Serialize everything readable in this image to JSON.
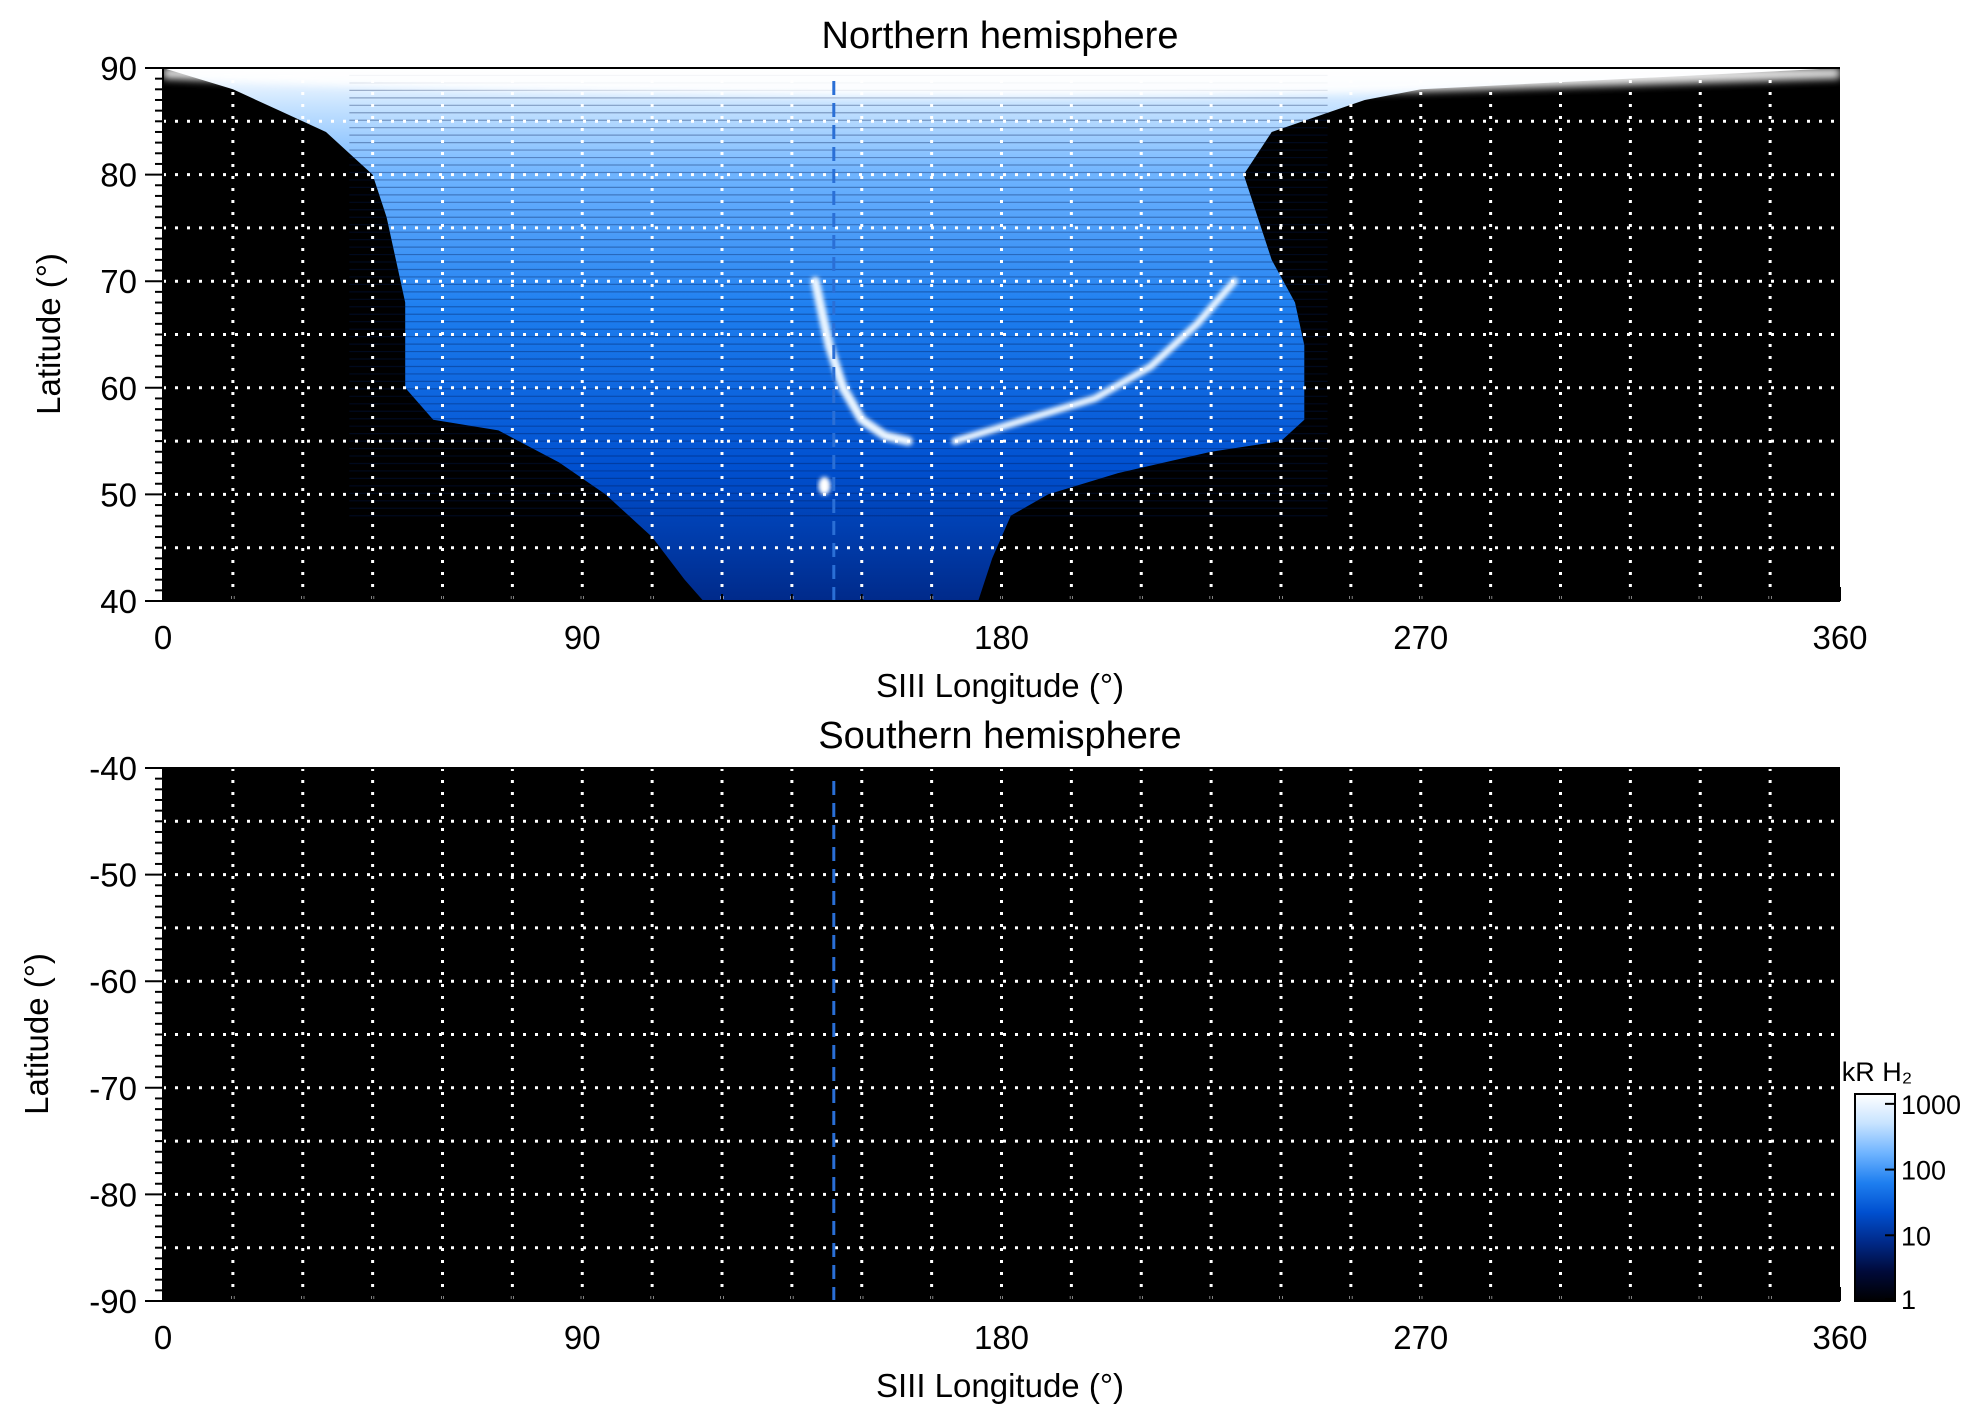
{
  "chart_data": [
    {
      "type": "heatmap",
      "title": "Northern hemisphere",
      "xlabel": "SIII Longitude (°)",
      "ylabel": "Latitude (°)",
      "xlim": [
        0,
        360
      ],
      "ylim": [
        40,
        90
      ],
      "xticks": [
        0,
        90,
        180,
        270,
        360
      ],
      "yticks": [
        40,
        50,
        60,
        70,
        80,
        90
      ],
      "x_grid_step": 15,
      "y_grid_step": 5,
      "grid": true,
      "reference_longitude": 144,
      "reference_line_color": "#2a6fd6",
      "emission": {
        "lower_boundary": [
          [
            0,
            90
          ],
          [
            15,
            88
          ],
          [
            25,
            86
          ],
          [
            35,
            84
          ],
          [
            45,
            80
          ],
          [
            48,
            76
          ],
          [
            50,
            72
          ],
          [
            52,
            68
          ],
          [
            52,
            64
          ],
          [
            52,
            60
          ],
          [
            58,
            57
          ],
          [
            72,
            56
          ],
          [
            85,
            53
          ],
          [
            95,
            50
          ],
          [
            105,
            46
          ],
          [
            112,
            42
          ],
          [
            116,
            40
          ],
          [
            175,
            40
          ],
          [
            178,
            44
          ],
          [
            182,
            48
          ],
          [
            190,
            50
          ],
          [
            205,
            52
          ],
          [
            225,
            54
          ],
          [
            240,
            55
          ],
          [
            245,
            57
          ],
          [
            245,
            60
          ],
          [
            245,
            64
          ],
          [
            243,
            68
          ],
          [
            238,
            72
          ],
          [
            235,
            76
          ],
          [
            232,
            80
          ],
          [
            238,
            84
          ],
          [
            258,
            87
          ],
          [
            270,
            88
          ],
          [
            360,
            90
          ]
        ],
        "oval_arc_west": [
          [
            140,
            70
          ],
          [
            143,
            64
          ],
          [
            146,
            60
          ],
          [
            150,
            57
          ],
          [
            155,
            55.5
          ],
          [
            160,
            55
          ]
        ],
        "oval_arc_east": [
          [
            170,
            55
          ],
          [
            185,
            57
          ],
          [
            200,
            59
          ],
          [
            212,
            62
          ],
          [
            222,
            66
          ],
          [
            230,
            70
          ]
        ],
        "spot": [
          142,
          50.8
        ]
      },
      "colorbar": {
        "label": "kR H₂",
        "scale": "log",
        "ticks": [
          "1",
          "10",
          "100",
          "1000"
        ],
        "tick_values": [
          1,
          10,
          100,
          1000
        ],
        "colors": [
          "#000000",
          "#000a3a",
          "#002a8a",
          "#0050d0",
          "#1e7ff0",
          "#6fb4ff",
          "#c7e3ff",
          "#ffffff"
        ]
      }
    },
    {
      "type": "heatmap",
      "title": "Southern hemisphere",
      "xlabel": "SIII Longitude (°)",
      "ylabel": "Latitude (°)",
      "xlim": [
        0,
        360
      ],
      "ylim": [
        -90,
        -40
      ],
      "xticks": [
        0,
        90,
        180,
        270,
        360
      ],
      "yticks": [
        -40,
        -50,
        -60,
        -70,
        -80,
        -90
      ],
      "x_grid_step": 15,
      "y_grid_step": 5,
      "grid": true,
      "reference_longitude": 144,
      "reference_line_color": "#2a6fd6"
    }
  ]
}
